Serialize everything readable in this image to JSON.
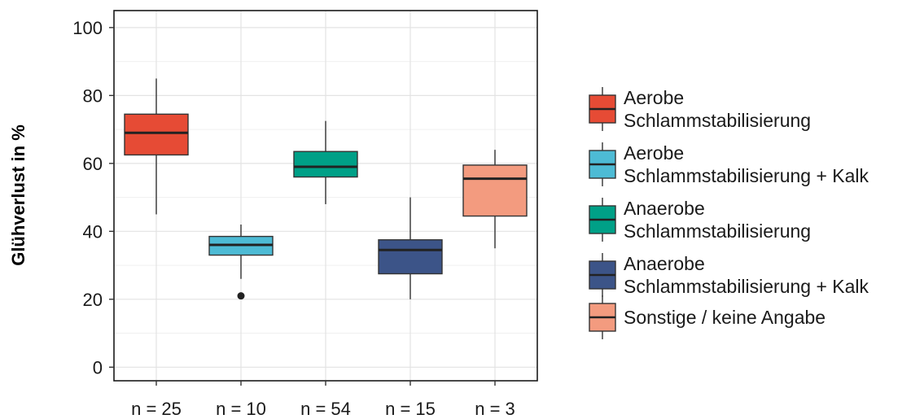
{
  "chart_data": {
    "type": "boxplot",
    "ylabel": "Glühverlust in %",
    "xlabel": "",
    "ylim": [
      -4,
      105
    ],
    "yticks": [
      0,
      20,
      40,
      60,
      80,
      100
    ],
    "grid": true,
    "legend_position": "right",
    "categories": [
      "n = 25",
      "n = 10",
      "n = 54",
      "n = 15",
      "n = 3"
    ],
    "series": [
      {
        "name": "Aerobe Schlammstabilisierung",
        "legend_lines": [
          "Aerobe",
          "Schlammstabilisierung"
        ],
        "color": "#E64B35",
        "whisker_low": 45,
        "q1": 62.5,
        "median": 69,
        "q3": 74.5,
        "whisker_high": 85,
        "outliers": []
      },
      {
        "name": "Aerobe Schlammstabilisierung + Kalk",
        "legend_lines": [
          "Aerobe",
          "Schlammstabilisierung + Kalk"
        ],
        "color": "#4DBBD5",
        "whisker_low": 26,
        "q1": 33,
        "median": 36,
        "q3": 38.5,
        "whisker_high": 42,
        "outliers": [
          21
        ]
      },
      {
        "name": "Anaerobe Schlammstabilisierung",
        "legend_lines": [
          "Anaerobe",
          "Schlammstabilisierung"
        ],
        "color": "#00A087",
        "whisker_low": 48,
        "q1": 56,
        "median": 59,
        "q3": 63.5,
        "whisker_high": 72.5,
        "outliers": []
      },
      {
        "name": "Anaerobe Schlammstabilisierung + Kalk",
        "legend_lines": [
          "Anaerobe",
          "Schlammstabilisierung + Kalk"
        ],
        "color": "#3C5488",
        "whisker_low": 20,
        "q1": 27.5,
        "median": 34.5,
        "q3": 37.5,
        "whisker_high": 50,
        "outliers": []
      },
      {
        "name": "Sonstige / keine Angabe",
        "legend_lines": [
          "Sonstige / keine Angabe"
        ],
        "color": "#F39B7F",
        "whisker_low": 35,
        "q1": 44.5,
        "median": 55.5,
        "q3": 59.5,
        "whisker_high": 64,
        "outliers": []
      }
    ]
  }
}
